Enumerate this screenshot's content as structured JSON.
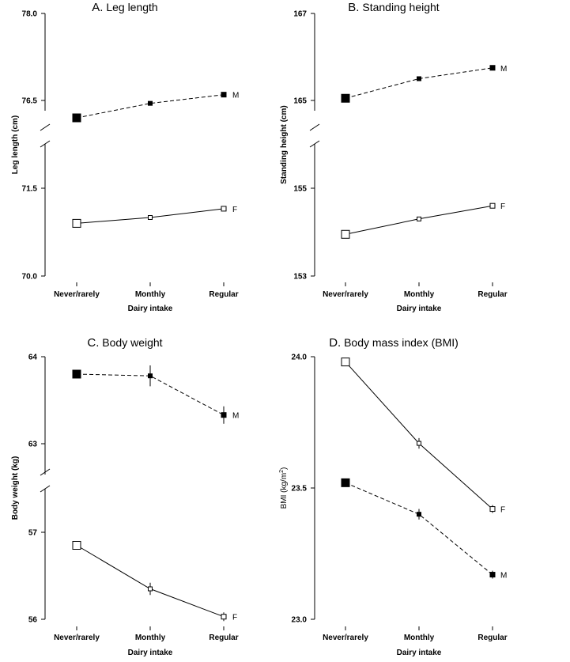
{
  "chart_data": [
    {
      "type": "line",
      "letter": "A.",
      "title": "Leg length",
      "xlabel": "Dairy intake",
      "ylabel": "Leg length (cm)",
      "categories": [
        "Never/rarely",
        "Monthly",
        "Regular"
      ],
      "segments": [
        {
          "ylim": [
            76.0,
            78.0
          ],
          "ticks": [
            "76.5",
            "78.0"
          ]
        },
        {
          "ylim": [
            70.0,
            71.75
          ],
          "ticks": [
            "70.0",
            "71.5"
          ]
        }
      ],
      "series": [
        {
          "name": "M",
          "values": [
            76.2,
            76.45,
            76.6
          ],
          "errors": [
            0,
            0.03,
            0.03
          ],
          "style": "dashed",
          "marker": "filled",
          "segment": 0
        },
        {
          "name": "F",
          "values": [
            70.9,
            71.0,
            71.15
          ],
          "errors": [
            0,
            0.01,
            0.01
          ],
          "style": "solid",
          "marker": "open",
          "segment": 1
        }
      ]
    },
    {
      "type": "line",
      "letter": "B.",
      "title": "Standing height",
      "xlabel": "Dairy intake",
      "ylabel": "Standing height (cm)",
      "categories": [
        "Never/rarely",
        "Monthly",
        "Regular"
      ],
      "segments": [
        {
          "ylim": [
            164.0,
            167.0
          ],
          "ticks": [
            "165",
            "167"
          ]
        },
        {
          "ylim": [
            153.0,
            155.5
          ],
          "ticks": [
            "153",
            "155"
          ]
        }
      ],
      "series": [
        {
          "name": "M",
          "values": [
            165.05,
            165.5,
            165.75
          ],
          "errors": [
            0,
            0.05,
            0.05
          ],
          "style": "dashed",
          "marker": "filled",
          "segment": 0
        },
        {
          "name": "F",
          "values": [
            153.95,
            154.3,
            154.6
          ],
          "errors": [
            0,
            0.02,
            0.02
          ],
          "style": "solid",
          "marker": "open",
          "segment": 1
        }
      ]
    },
    {
      "type": "line",
      "letter": "C.",
      "title": "Body weight",
      "xlabel": "Dairy intake",
      "ylabel": "Body weight (kg)",
      "categories": [
        "Never/rarely",
        "Monthly",
        "Regular"
      ],
      "segments": [
        {
          "ylim": [
            62.5,
            64.0
          ],
          "ticks": [
            "63",
            "64"
          ]
        },
        {
          "ylim": [
            56.0,
            57.25
          ],
          "ticks": [
            "56",
            "57"
          ]
        }
      ],
      "series": [
        {
          "name": "M",
          "values": [
            63.8,
            63.78,
            63.33
          ],
          "errors": [
            0.04,
            0.12,
            0.1
          ],
          "style": "dashed",
          "marker": "filled",
          "segment": 0
        },
        {
          "name": "F",
          "values": [
            56.85,
            56.35,
            56.03
          ],
          "errors": [
            0,
            0.07,
            0.05
          ],
          "style": "solid",
          "marker": "open",
          "segment": 1
        }
      ]
    },
    {
      "type": "line",
      "letter": "D.",
      "title": "Body mass index (BMI)",
      "xlabel": "Dairy intake",
      "ylabel_main": "BMI (kg/m",
      "ylabel_sup": "2",
      "ylabel_end": ")",
      "categories": [
        "Never/rarely",
        "Monthly",
        "Regular"
      ],
      "segments": [
        {
          "ylim": [
            23.0,
            24.0
          ],
          "ticks": [
            "23.0",
            "23.5",
            "24.0"
          ]
        }
      ],
      "series": [
        {
          "name": "F",
          "values": [
            23.98,
            23.67,
            23.42
          ],
          "errors": [
            0,
            0.02,
            0.015
          ],
          "style": "solid",
          "marker": "open",
          "segment": 0
        },
        {
          "name": "M",
          "values": [
            23.52,
            23.4,
            23.17
          ],
          "errors": [
            0,
            0.02,
            0.015
          ],
          "style": "dashed",
          "marker": "filled",
          "segment": 0
        }
      ]
    }
  ]
}
